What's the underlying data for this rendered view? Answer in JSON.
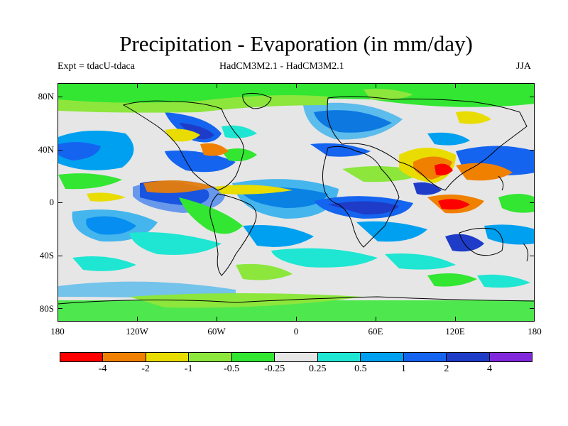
{
  "title": "Precipitation - Evaporation (in mm/day)",
  "subtitle_left": "Expt = tdacU-tdaca",
  "subtitle_center": "HadCM3M2.1 - HadCM3M2.1",
  "subtitle_right": "JJA",
  "map": {
    "projection": "cylindrical equidistant",
    "lat_labels": [
      "80N",
      "40N",
      "0",
      "40S",
      "80S"
    ],
    "lat_values": [
      80,
      40,
      0,
      -40,
      -80
    ],
    "lon_labels": [
      "180",
      "120W",
      "60W",
      "0",
      "60E",
      "120E",
      "180"
    ],
    "lon_values": [
      -180,
      -120,
      -60,
      0,
      60,
      120,
      180
    ],
    "background_color": "#e6e6e6"
  },
  "colorbar": {
    "colors": [
      "#ff0000",
      "#f08000",
      "#e8dc00",
      "#8ce63c",
      "#32e632",
      "#e6e6e6",
      "#1ee6d2",
      "#00a0f0",
      "#1464f0",
      "#1e3cc8",
      "#8228dc"
    ],
    "labels": [
      "-4",
      "-2",
      "-1",
      "-0.5",
      "-0.25",
      "0.25",
      "0.5",
      "1",
      "2",
      "4"
    ]
  }
}
